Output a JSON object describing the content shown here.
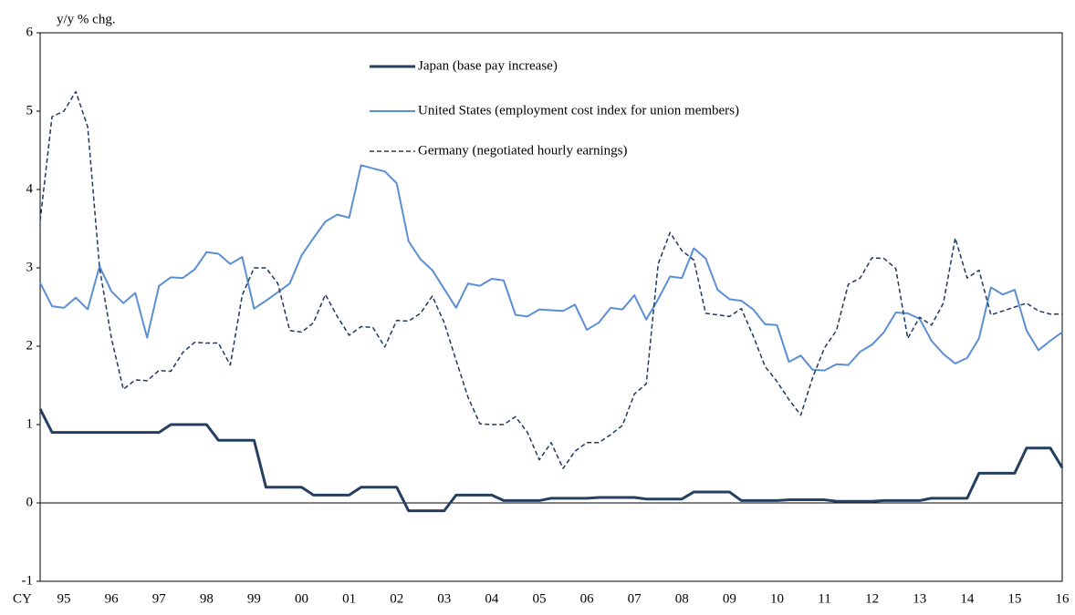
{
  "chart_data": {
    "type": "line",
    "y_label": "y/y % chg.",
    "x_label": "CY",
    "categories": [
      null,
      null,
      "95",
      null,
      null,
      null,
      "96",
      null,
      null,
      null,
      "97",
      null,
      null,
      null,
      "98",
      null,
      null,
      null,
      "99",
      null,
      null,
      null,
      "00",
      null,
      null,
      null,
      "01",
      null,
      null,
      null,
      "02",
      null,
      null,
      null,
      "03",
      null,
      null,
      null,
      "04",
      null,
      null,
      null,
      "05",
      null,
      null,
      null,
      "06",
      null,
      null,
      null,
      "07",
      null,
      null,
      null,
      "08",
      null,
      null,
      null,
      "09",
      null,
      null,
      null,
      "10",
      null,
      null,
      null,
      "11",
      null,
      null,
      null,
      "12",
      null,
      null,
      null,
      "13",
      null,
      null,
      null,
      "14",
      null,
      null,
      null,
      "15",
      null,
      null,
      null,
      "16"
    ],
    "ylim": [
      -1,
      6
    ],
    "yticks": [
      -1,
      0,
      1,
      2,
      3,
      4,
      5,
      6
    ],
    "zero_line": true,
    "series": [
      {
        "name": "Japan (base pay increase)",
        "color": "#243f60",
        "linewidth": 3,
        "linestyle": "solid",
        "values": [
          1.2,
          0.9,
          0.9,
          0.9,
          0.9,
          0.9,
          0.9,
          0.9,
          0.9,
          0.9,
          0.9,
          1.0,
          1.0,
          1.0,
          1.0,
          0.8,
          0.8,
          0.8,
          0.8,
          0.2,
          0.2,
          0.2,
          0.2,
          0.1,
          0.1,
          0.1,
          0.1,
          0.2,
          0.2,
          0.2,
          0.2,
          -0.1,
          -0.1,
          -0.1,
          -0.1,
          0.1,
          0.1,
          0.1,
          0.1,
          0.03,
          0.03,
          0.03,
          0.03,
          0.06,
          0.06,
          0.06,
          0.06,
          0.07,
          0.07,
          0.07,
          0.07,
          0.05,
          0.05,
          0.05,
          0.05,
          0.14,
          0.14,
          0.14,
          0.14,
          0.03,
          0.03,
          0.03,
          0.03,
          0.04,
          0.04,
          0.04,
          0.04,
          0.02,
          0.02,
          0.02,
          0.02,
          0.03,
          0.03,
          0.03,
          0.03,
          0.06,
          0.06,
          0.06,
          0.06,
          0.38,
          0.38,
          0.38,
          0.38,
          0.7,
          0.7,
          0.7,
          0.45
        ]
      },
      {
        "name": "United States (employment cost index for union members)",
        "color": "#5b8fd4",
        "linewidth": 2,
        "linestyle": "solid",
        "values": [
          2.81,
          2.51,
          2.49,
          2.62,
          2.47,
          3.02,
          2.7,
          2.55,
          2.68,
          2.11,
          2.77,
          2.88,
          2.87,
          2.98,
          3.2,
          3.18,
          3.05,
          3.14,
          2.48,
          2.58,
          2.69,
          2.8,
          3.16,
          3.38,
          3.59,
          3.68,
          3.64,
          4.31,
          4.27,
          4.23,
          4.08,
          3.34,
          3.11,
          2.97,
          2.73,
          2.49,
          2.8,
          2.77,
          2.86,
          2.84,
          2.4,
          2.38,
          2.47,
          2.46,
          2.45,
          2.53,
          2.21,
          2.3,
          2.49,
          2.47,
          2.65,
          2.34,
          2.6,
          2.89,
          2.87,
          3.25,
          3.12,
          2.72,
          2.6,
          2.58,
          2.47,
          2.28,
          2.27,
          1.8,
          1.88,
          1.7,
          1.69,
          1.77,
          1.76,
          1.93,
          2.02,
          2.18,
          2.43,
          2.42,
          2.35,
          2.07,
          1.9,
          1.78,
          1.85,
          2.1,
          2.75,
          2.66,
          2.72,
          2.2,
          1.95,
          2.07,
          2.18
        ]
      },
      {
        "name": "Germany (negotiated hourly earnings)",
        "color": "#1f3a5f",
        "linewidth": 1.5,
        "linestyle": "dashed",
        "values": [
          3.6,
          4.93,
          5.0,
          5.25,
          4.8,
          3.0,
          2.1,
          1.45,
          1.57,
          1.56,
          1.69,
          1.68,
          1.92,
          2.05,
          2.04,
          2.04,
          1.76,
          2.65,
          3.0,
          3.0,
          2.8,
          2.2,
          2.18,
          2.3,
          2.66,
          2.38,
          2.14,
          2.25,
          2.24,
          1.99,
          2.33,
          2.32,
          2.42,
          2.64,
          2.3,
          1.82,
          1.35,
          1.01,
          1.0,
          1.0,
          1.1,
          0.9,
          0.55,
          0.77,
          0.44,
          0.66,
          0.77,
          0.77,
          0.87,
          0.99,
          1.39,
          1.52,
          3.05,
          3.45,
          3.22,
          3.1,
          2.42,
          2.4,
          2.38,
          2.48,
          2.13,
          1.74,
          1.55,
          1.32,
          1.12,
          1.6,
          1.98,
          2.2,
          2.79,
          2.87,
          3.13,
          3.12,
          2.99,
          2.1,
          2.37,
          2.27,
          2.55,
          3.38,
          2.87,
          2.97,
          2.4,
          2.45,
          2.5,
          2.55,
          2.45,
          2.41,
          2.41
        ]
      }
    ]
  }
}
